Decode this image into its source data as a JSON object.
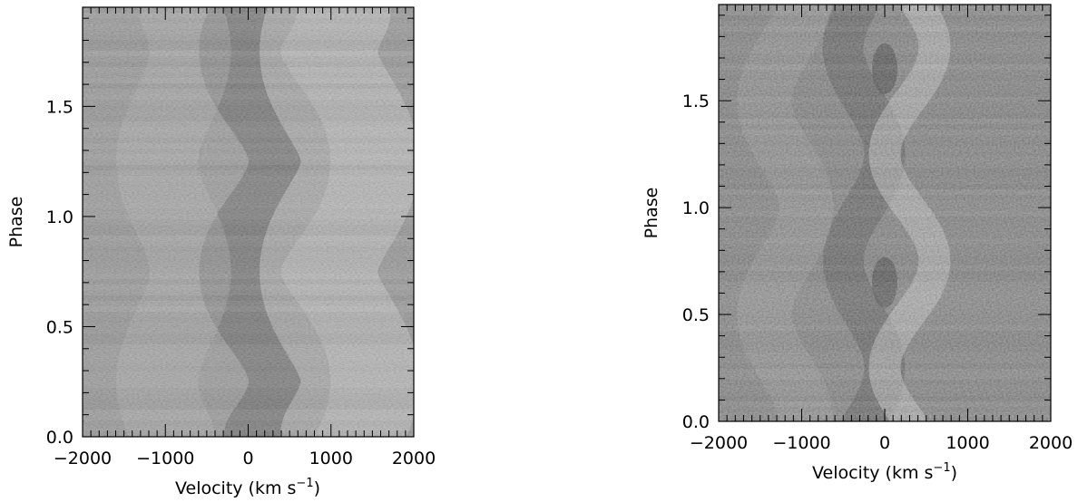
{
  "chart_data": [
    {
      "type": "heatmap",
      "xlabel": "Velocity (km s",
      "xlabel_sup": "−1",
      "xlabel_close": ")",
      "ylabel": "Phase",
      "xlim": [
        -2000,
        2000
      ],
      "ylim": [
        0.0,
        1.95
      ],
      "xticks": [
        -2000,
        -1000,
        0,
        1000,
        2000
      ],
      "xtick_labels": [
        "−2000",
        "−1000",
        "0",
        "1000",
        "2000"
      ],
      "yticks": [
        0.0,
        0.5,
        1.0,
        1.5
      ],
      "ytick_labels": [
        "0.0",
        "0.5",
        "1.0",
        "1.5"
      ],
      "colormap": "grayscale",
      "features": {
        "dark_trail_velocity_mean": 200,
        "dark_trail_amplitude": 300,
        "bright_wing_velocity_mean": 1100,
        "bright_wing_amplitude": 250
      }
    },
    {
      "type": "heatmap",
      "xlabel": "Velocity (km s",
      "xlabel_sup": "−1",
      "xlabel_close": ")",
      "ylabel": "Phase",
      "xlim": [
        -2000,
        2000
      ],
      "ylim": [
        0.0,
        1.95
      ],
      "xticks": [
        -2000,
        -1000,
        0,
        1000,
        2000
      ],
      "xtick_labels": [
        "−2000",
        "−1000",
        "0",
        "1000",
        "2000"
      ],
      "yticks": [
        0.0,
        0.5,
        1.0,
        1.5
      ],
      "ytick_labels": [
        "0.0",
        "0.5",
        "1.0",
        "1.5"
      ],
      "colormap": "grayscale",
      "features": {
        "dark_spot_velocity": 0,
        "dark_spot_phases": [
          0.65,
          1.65
        ],
        "dark_s_wave_velocity_mean": -250,
        "dark_s_wave_amplitude": 250,
        "bright_s_wave_velocity_mean": 300,
        "bright_s_wave_amplitude": 300
      }
    }
  ]
}
